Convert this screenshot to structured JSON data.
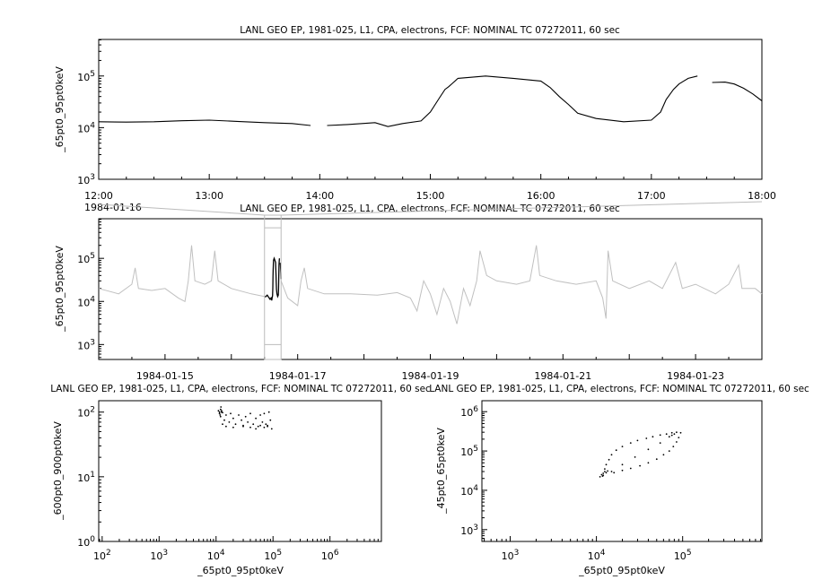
{
  "chart_data": [
    {
      "type": "line",
      "title": "LANL GEO EP, 1981-025, L1, CPA, electrons, FCF: NOMINAL TC 07272011, 60 sec",
      "ylabel": "_65pt0_95pt0keV",
      "xlabel": "",
      "yscale": "log",
      "ylim": [
        1000,
        510000
      ],
      "xlim": [
        "12:00",
        "18:00"
      ],
      "x_ticks": [
        "12:00",
        "13:00",
        "14:00",
        "15:00",
        "16:00",
        "17:00",
        "18:00"
      ],
      "y_ticks": [
        "10^3",
        "10^4",
        "10^5"
      ],
      "date_label": "1984-01-16",
      "color": "#000000",
      "series": [
        {
          "x": [
            "12:00",
            "12:15",
            "12:30",
            "12:45",
            "13:00",
            "13:15",
            "13:30",
            "13:45",
            "13:55"
          ],
          "y": [
            13000,
            12800,
            13000,
            13600,
            14000,
            13200,
            12500,
            12000,
            11000
          ]
        },
        {
          "x": [
            "14:04",
            "14:15",
            "14:30",
            "14:37",
            "14:45",
            "14:55",
            "15:00",
            "15:05",
            "15:08",
            "15:10",
            "15:12",
            "15:15",
            "15:30",
            "15:45",
            "16:00",
            "16:05",
            "16:10",
            "16:15",
            "16:20",
            "16:30",
            "16:45",
            "17:00",
            "17:05",
            "17:08",
            "17:12",
            "17:15",
            "17:20",
            "17:25"
          ],
          "y": [
            11000,
            11500,
            12500,
            10500,
            12000,
            13500,
            20000,
            38000,
            55000,
            62000,
            72000,
            90000,
            100000,
            90000,
            80000,
            60000,
            40000,
            28000,
            19000,
            15000,
            13000,
            14000,
            20000,
            35000,
            55000,
            70000,
            90000,
            100000
          ]
        },
        {
          "x": [
            "17:33",
            "17:40",
            "17:45",
            "17:50",
            "17:55",
            "18:00"
          ],
          "y": [
            75000,
            76000,
            70000,
            58000,
            45000,
            33000
          ]
        }
      ]
    },
    {
      "type": "line",
      "title": "LANL GEO EP, 1981-025, L1, CPA, electrons, FCF: NOMINAL TC 07272011, 60 sec",
      "ylabel": "_65pt0_95pt0keV",
      "yscale": "log",
      "ylim": [
        450,
        830000
      ],
      "xlim": [
        "1984-01-14",
        "1984-01-24"
      ],
      "x_ticks": [
        "1984-01-15",
        "1984-01-17",
        "1984-01-19",
        "1984-01-21",
        "1984-01-23"
      ],
      "y_ticks": [
        "10^3",
        "10^4",
        "10^5"
      ],
      "highlight": {
        "from": "1984-01-16 12:00",
        "to": "1984-01-16 18:00",
        "color": "#000000"
      },
      "color": "#c0c0c0",
      "series": [
        {
          "x_days": [
            0,
            0.3,
            0.5,
            0.55,
            0.6,
            0.8,
            1.0,
            1.2,
            1.3,
            1.35,
            1.4,
            1.45,
            1.6,
            1.7,
            1.75,
            1.8,
            2.0,
            2.3,
            2.5
          ],
          "y": [
            20000,
            15000,
            25000,
            60000,
            20000,
            18000,
            20000,
            12000,
            10000,
            30000,
            200000,
            30000,
            25000,
            30000,
            150000,
            30000,
            20000,
            15000,
            13000
          ]
        },
        {
          "x_days": [
            2.75,
            2.85,
            3.0,
            3.05,
            3.1,
            3.15,
            3.4,
            3.8,
            4.2,
            4.5,
            4.7,
            4.8,
            4.9,
            5.0,
            5.1,
            5.2,
            5.3,
            5.4,
            5.5,
            5.6,
            5.7,
            5.75,
            5.85,
            6.0,
            6.3,
            6.5,
            6.6,
            6.65,
            6.9,
            7.2,
            7.5,
            7.6,
            7.65,
            7.68,
            7.75,
            8.0,
            8.3,
            8.5,
            8.7,
            8.8,
            9.0,
            9.3,
            9.5,
            9.65,
            9.7,
            9.9,
            10.0
          ],
          "y": [
            30000,
            12000,
            8000,
            30000,
            60000,
            20000,
            15000,
            15000,
            14000,
            16000,
            12000,
            6000,
            30000,
            15000,
            5000,
            20000,
            10000,
            3000,
            20000,
            8000,
            30000,
            150000,
            40000,
            30000,
            25000,
            30000,
            200000,
            40000,
            30000,
            25000,
            30000,
            12000,
            4000,
            150000,
            30000,
            20000,
            30000,
            20000,
            80000,
            20000,
            25000,
            15000,
            25000,
            70000,
            20000,
            20000,
            15000
          ]
        }
      ]
    },
    {
      "type": "scatter",
      "title": "LANL GEO EP, 1981-025, L1, CPA, electrons, FCF: NOMINAL TC 07272011, 60 sec",
      "xlabel": "_65pt0_95pt0keV",
      "ylabel": "_600pt0_900pt0keV",
      "xscale": "log",
      "yscale": "log",
      "xlim": [
        87,
        8000000
      ],
      "ylim": [
        1,
        150
      ],
      "x_ticks": [
        "10^2",
        "10^3",
        "10^4",
        "10^5",
        "10^6"
      ],
      "y_ticks": [
        "10^0",
        "10^1",
        "10^2"
      ],
      "points": [
        [
          11000,
          105
        ],
        [
          11500,
          95
        ],
        [
          12000,
          110
        ],
        [
          12500,
          100
        ],
        [
          11800,
          90
        ],
        [
          12200,
          120
        ],
        [
          13000,
          98
        ],
        [
          12000,
          85
        ],
        [
          14000,
          75
        ],
        [
          15000,
          90
        ],
        [
          17000,
          70
        ],
        [
          18000,
          95
        ],
        [
          20000,
          80
        ],
        [
          22000,
          65
        ],
        [
          25000,
          90
        ],
        [
          28000,
          75
        ],
        [
          30000,
          60
        ],
        [
          33000,
          85
        ],
        [
          36000,
          70
        ],
        [
          40000,
          95
        ],
        [
          45000,
          65
        ],
        [
          50000,
          80
        ],
        [
          55000,
          60
        ],
        [
          60000,
          90
        ],
        [
          65000,
          70
        ],
        [
          70000,
          95
        ],
        [
          75000,
          65
        ],
        [
          80000,
          60
        ],
        [
          85000,
          100
        ],
        [
          90000,
          75
        ],
        [
          80000,
          62
        ],
        [
          70000,
          58
        ],
        [
          60000,
          62
        ],
        [
          50000,
          55
        ],
        [
          40000,
          58
        ],
        [
          30000,
          62
        ],
        [
          20000,
          58
        ],
        [
          15000,
          60
        ],
        [
          13000,
          65
        ],
        [
          95000,
          55
        ],
        [
          12500,
          105
        ],
        [
          11500,
          100
        ]
      ]
    },
    {
      "type": "scatter",
      "title": "LANL GEO EP, 1981-025, L1, CPA, electrons, FCF: NOMINAL TC 07272011, 60 sec",
      "xlabel": "_65pt0_95pt0keV",
      "ylabel": "_45pt0_65pt0keV",
      "xscale": "log",
      "yscale": "log",
      "xlim": [
        470,
        830000
      ],
      "ylim": [
        500,
        1900000
      ],
      "x_ticks": [
        "10^3",
        "10^4",
        "10^5"
      ],
      "y_ticks": [
        "10^3",
        "10^4",
        "10^5",
        "10^6"
      ],
      "points": [
        [
          11000,
          22000
        ],
        [
          11500,
          25000
        ],
        [
          12000,
          27000
        ],
        [
          12500,
          30000
        ],
        [
          13000,
          28000
        ],
        [
          12000,
          24000
        ],
        [
          11800,
          23000
        ],
        [
          13500,
          31000
        ],
        [
          12500,
          35000
        ],
        [
          13000,
          45000
        ],
        [
          14000,
          60000
        ],
        [
          15000,
          80000
        ],
        [
          17000,
          105000
        ],
        [
          20000,
          130000
        ],
        [
          25000,
          160000
        ],
        [
          30000,
          185000
        ],
        [
          38000,
          210000
        ],
        [
          45000,
          230000
        ],
        [
          55000,
          255000
        ],
        [
          65000,
          270000
        ],
        [
          75000,
          290000
        ],
        [
          85000,
          300000
        ],
        [
          95000,
          290000
        ],
        [
          90000,
          220000
        ],
        [
          85000,
          170000
        ],
        [
          78000,
          130000
        ],
        [
          70000,
          100000
        ],
        [
          60000,
          80000
        ],
        [
          50000,
          62000
        ],
        [
          40000,
          50000
        ],
        [
          32000,
          42000
        ],
        [
          25000,
          36000
        ],
        [
          20000,
          32000
        ],
        [
          16000,
          28000
        ],
        [
          15000,
          30000
        ],
        [
          20000,
          45000
        ],
        [
          28000,
          70000
        ],
        [
          40000,
          110000
        ],
        [
          55000,
          160000
        ],
        [
          70000,
          230000
        ],
        [
          80000,
          270000
        ],
        [
          75000,
          250000
        ]
      ]
    }
  ]
}
